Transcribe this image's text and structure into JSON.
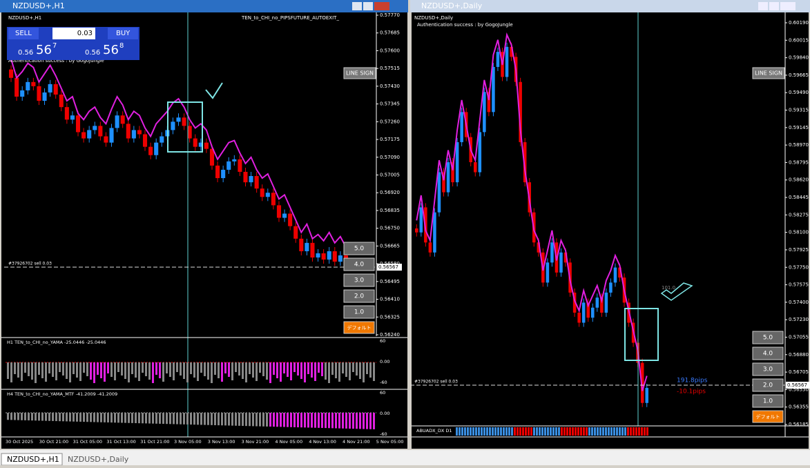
{
  "left": {
    "window_title": "NZDUSD+,H1",
    "chart_label": "NZDUSD+,H1",
    "ea_name": "TEN_to_CHI_no_PIPSFUTURE_AUTOEXIT_",
    "trade_panel": {
      "sell": "SELL",
      "lot": "0.03",
      "buy": "BUY",
      "bid_big": "0.56",
      "bid_mid": "56",
      "bid_small": "7",
      "ask_big": "0.56",
      "ask_mid": "56",
      "ask_small": "8"
    },
    "auth": "Authentication success : by GogoJungle",
    "line_sign": "LINE SIGN",
    "buttons": [
      "5.0",
      "4.0",
      "3.0",
      "2.0",
      "1.0",
      "デフォルト"
    ],
    "order_label": "#37926702 sell 0.03",
    "current_price": "0.56567",
    "price_labels": [
      "0.57770",
      "0.57685",
      "0.57600",
      "0.57515",
      "0.57430",
      "0.57345",
      "0.57260",
      "0.57175",
      "0.57090",
      "0.57005",
      "0.56920",
      "0.56835",
      "0.56750",
      "0.56665",
      "0.56580",
      "0.56495",
      "0.56410",
      "0.56325",
      "0.56240"
    ],
    "closes": [
      0.5747,
      0.5738,
      0.5741,
      0.5745,
      0.5743,
      0.5736,
      0.574,
      0.5744,
      0.5739,
      0.5733,
      0.5727,
      0.5729,
      0.5721,
      0.5718,
      0.5722,
      0.5724,
      0.5719,
      0.5716,
      0.5723,
      0.5729,
      0.5725,
      0.5718,
      0.5722,
      0.572,
      0.5714,
      0.571,
      0.5716,
      0.5719,
      0.5722,
      0.5726,
      0.5728,
      0.5724,
      0.5718,
      0.5714,
      0.5716,
      0.5713,
      0.5705,
      0.5699,
      0.5703,
      0.5707,
      0.5708,
      0.5702,
      0.5697,
      0.57,
      0.5694,
      0.569,
      0.5692,
      0.5686,
      0.568,
      0.5682,
      0.5676,
      0.567,
      0.5664,
      0.5668,
      0.5661,
      0.5663,
      0.566,
      0.5664,
      0.5659,
      0.5662,
      0.5657
    ],
    "ind1_label": "H1  TEN_to_CHI_no_YAMA -25.0446 -25.0446",
    "ind1_scale": [
      "60",
      "0.00",
      "-60"
    ],
    "ind2_label": "H4  TEN_to_CHI_no_YAMA_MTF -41.2009 -41.2009",
    "ind2_scale": [
      "60",
      "0.00",
      "-60"
    ],
    "time_labels": [
      "30 Oct 2025",
      "30 Oct 21:00",
      "31 Oct 05:00",
      "31 Oct 13:00",
      "31 Oct 21:00",
      "3 Nov 05:00",
      "3 Nov 13:00",
      "3 Nov 21:00",
      "4 Nov 05:00",
      "4 Nov 13:00",
      "4 Nov 21:00",
      "5 Nov 05:00"
    ]
  },
  "right": {
    "window_title": "NZDUSD+,Daily",
    "chart_label": "NZDUSD+,Daily",
    "auth": "Authentication success : by GogoJungle",
    "line_sign": "LINE SIGN",
    "buttons": [
      "5.0",
      "4.0",
      "3.0",
      "2.0",
      "1.0",
      "デフォルト"
    ],
    "order_label": "#37926702 sell 0.03",
    "current_price": "0.56567",
    "pips_up": "191.8pips",
    "pips_down": "-10.1pips",
    "level_label": "101.0",
    "adx_label": "ABUADX_DX D1",
    "price_labels": [
      "0.60190",
      "0.60015",
      "0.59840",
      "0.59665",
      "0.59490",
      "0.59315",
      "0.59145",
      "0.58970",
      "0.58795",
      "0.58620",
      "0.58445",
      "0.58275",
      "0.58100",
      "0.57925",
      "0.57750",
      "0.57575",
      "0.57400",
      "0.57230",
      "0.57055",
      "0.56880",
      "0.56705",
      "0.56530",
      "0.56355",
      "0.56185"
    ],
    "closes": [
      0.581,
      0.5835,
      0.58,
      0.579,
      0.583,
      0.587,
      0.585,
      0.588,
      0.586,
      0.59,
      0.593,
      0.5905,
      0.588,
      0.587,
      0.591,
      0.595,
      0.593,
      0.5975,
      0.599,
      0.5965,
      0.5995,
      0.5985,
      0.596,
      0.59,
      0.586,
      0.583,
      0.58,
      0.579,
      0.576,
      0.578,
      0.58,
      0.577,
      0.579,
      0.578,
      0.575,
      0.573,
      0.572,
      0.574,
      0.5725,
      0.5735,
      0.5745,
      0.573,
      0.575,
      0.576,
      0.5775,
      0.5765,
      0.574,
      0.572,
      0.57,
      0.568,
      0.564,
      0.5655
    ]
  },
  "tabs": [
    "NZDUSD+,H1",
    "NZDUSD+,Daily"
  ]
}
